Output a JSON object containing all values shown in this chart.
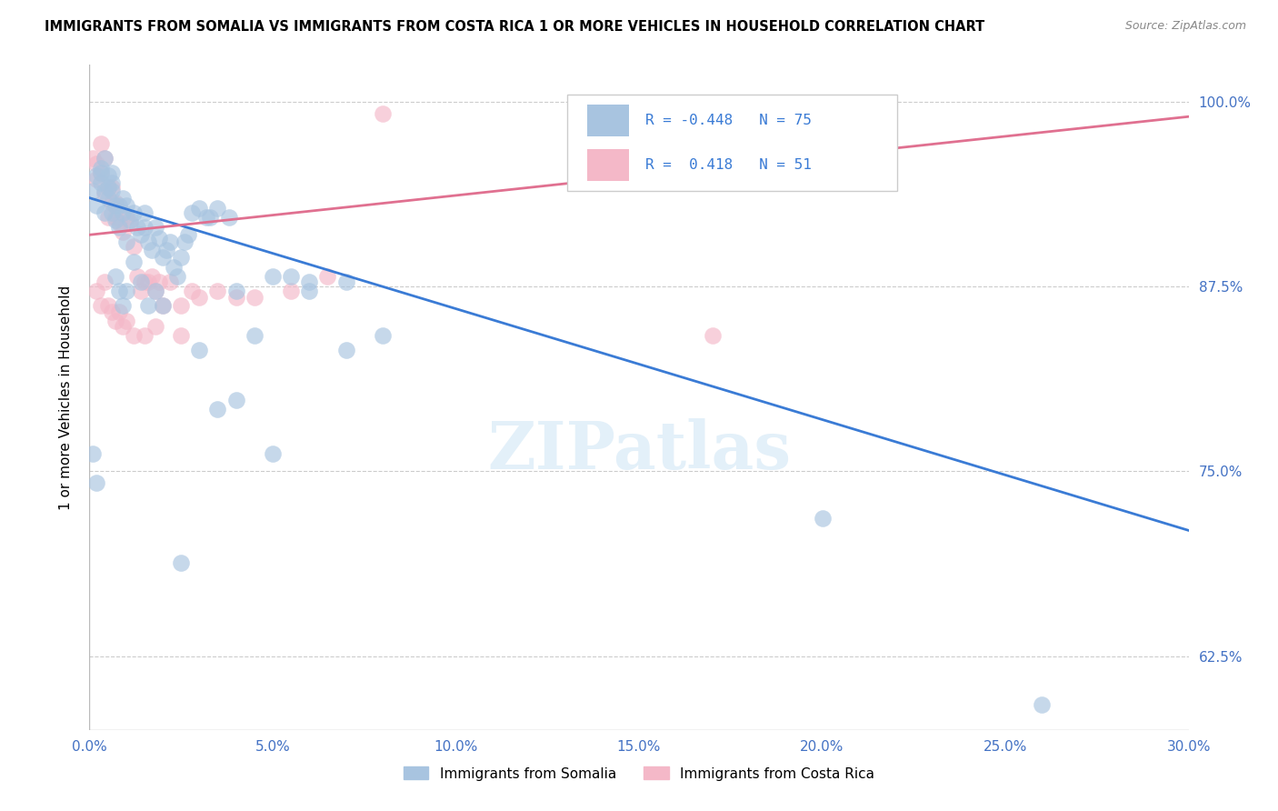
{
  "title": "IMMIGRANTS FROM SOMALIA VS IMMIGRANTS FROM COSTA RICA 1 OR MORE VEHICLES IN HOUSEHOLD CORRELATION CHART",
  "source": "Source: ZipAtlas.com",
  "ylabel": "1 or more Vehicles in Household",
  "xlim": [
    0.0,
    0.3
  ],
  "ylim": [
    0.575,
    1.025
  ],
  "somalia_R": -0.448,
  "somalia_N": 75,
  "costarica_R": 0.418,
  "costarica_N": 51,
  "somalia_color": "#a8c4e0",
  "costarica_color": "#f4b8c8",
  "somalia_line_color": "#3a7bd5",
  "costarica_line_color": "#e07090",
  "watermark_text": "ZIPatlas",
  "somalia_line_x": [
    0.0,
    0.3
  ],
  "somalia_line_y": [
    0.935,
    0.71
  ],
  "costarica_line_x": [
    0.0,
    0.3
  ],
  "costarica_line_y": [
    0.91,
    0.99
  ],
  "somalia_x": [
    0.001,
    0.002,
    0.002,
    0.003,
    0.003,
    0.004,
    0.004,
    0.005,
    0.005,
    0.006,
    0.006,
    0.006,
    0.007,
    0.007,
    0.008,
    0.008,
    0.009,
    0.009,
    0.01,
    0.01,
    0.011,
    0.012,
    0.013,
    0.014,
    0.015,
    0.015,
    0.016,
    0.017,
    0.018,
    0.019,
    0.02,
    0.021,
    0.022,
    0.023,
    0.024,
    0.025,
    0.026,
    0.027,
    0.028,
    0.03,
    0.032,
    0.033,
    0.035,
    0.038,
    0.04,
    0.045,
    0.05,
    0.055,
    0.06,
    0.07,
    0.001,
    0.002,
    0.003,
    0.004,
    0.005,
    0.006,
    0.007,
    0.008,
    0.009,
    0.01,
    0.012,
    0.014,
    0.016,
    0.018,
    0.02,
    0.025,
    0.03,
    0.035,
    0.04,
    0.05,
    0.06,
    0.07,
    0.08,
    0.2,
    0.26
  ],
  "somalia_y": [
    0.94,
    0.95,
    0.93,
    0.955,
    0.945,
    0.94,
    0.925,
    0.935,
    0.95,
    0.94,
    0.945,
    0.925,
    0.93,
    0.92,
    0.915,
    0.93,
    0.925,
    0.935,
    0.93,
    0.905,
    0.92,
    0.925,
    0.915,
    0.91,
    0.925,
    0.915,
    0.905,
    0.9,
    0.915,
    0.908,
    0.895,
    0.9,
    0.905,
    0.888,
    0.882,
    0.895,
    0.905,
    0.91,
    0.925,
    0.928,
    0.922,
    0.922,
    0.928,
    0.922,
    0.872,
    0.842,
    0.882,
    0.882,
    0.878,
    0.878,
    0.762,
    0.742,
    0.952,
    0.962,
    0.942,
    0.952,
    0.882,
    0.872,
    0.862,
    0.872,
    0.892,
    0.878,
    0.862,
    0.872,
    0.862,
    0.688,
    0.832,
    0.792,
    0.798,
    0.762,
    0.872,
    0.832,
    0.842,
    0.718,
    0.592
  ],
  "costarica_x": [
    0.001,
    0.002,
    0.002,
    0.003,
    0.003,
    0.004,
    0.004,
    0.005,
    0.005,
    0.006,
    0.006,
    0.007,
    0.007,
    0.008,
    0.009,
    0.01,
    0.011,
    0.012,
    0.013,
    0.014,
    0.015,
    0.016,
    0.017,
    0.018,
    0.019,
    0.02,
    0.022,
    0.025,
    0.028,
    0.03,
    0.035,
    0.04,
    0.045,
    0.055,
    0.065,
    0.08,
    0.002,
    0.003,
    0.004,
    0.005,
    0.006,
    0.007,
    0.008,
    0.009,
    0.01,
    0.012,
    0.015,
    0.018,
    0.025,
    0.17,
    0.2
  ],
  "costarica_y": [
    0.962,
    0.958,
    0.948,
    0.952,
    0.972,
    0.962,
    0.938,
    0.942,
    0.922,
    0.942,
    0.932,
    0.922,
    0.932,
    0.918,
    0.912,
    0.922,
    0.918,
    0.902,
    0.882,
    0.872,
    0.878,
    0.878,
    0.882,
    0.872,
    0.878,
    0.862,
    0.878,
    0.862,
    0.872,
    0.868,
    0.872,
    0.868,
    0.868,
    0.872,
    0.882,
    0.992,
    0.872,
    0.862,
    0.878,
    0.862,
    0.858,
    0.852,
    0.858,
    0.848,
    0.852,
    0.842,
    0.842,
    0.848,
    0.842,
    0.842,
    0.992
  ],
  "x_tick_vals": [
    0.0,
    0.05,
    0.1,
    0.15,
    0.2,
    0.25,
    0.3
  ],
  "x_tick_labels": [
    "0.0%",
    "5.0%",
    "10.0%",
    "15.0%",
    "20.0%",
    "25.0%",
    "30.0%"
  ],
  "y_tick_vals": [
    0.625,
    0.75,
    0.875,
    1.0
  ],
  "y_tick_labels": [
    "62.5%",
    "75.0%",
    "87.5%",
    "100.0%"
  ]
}
